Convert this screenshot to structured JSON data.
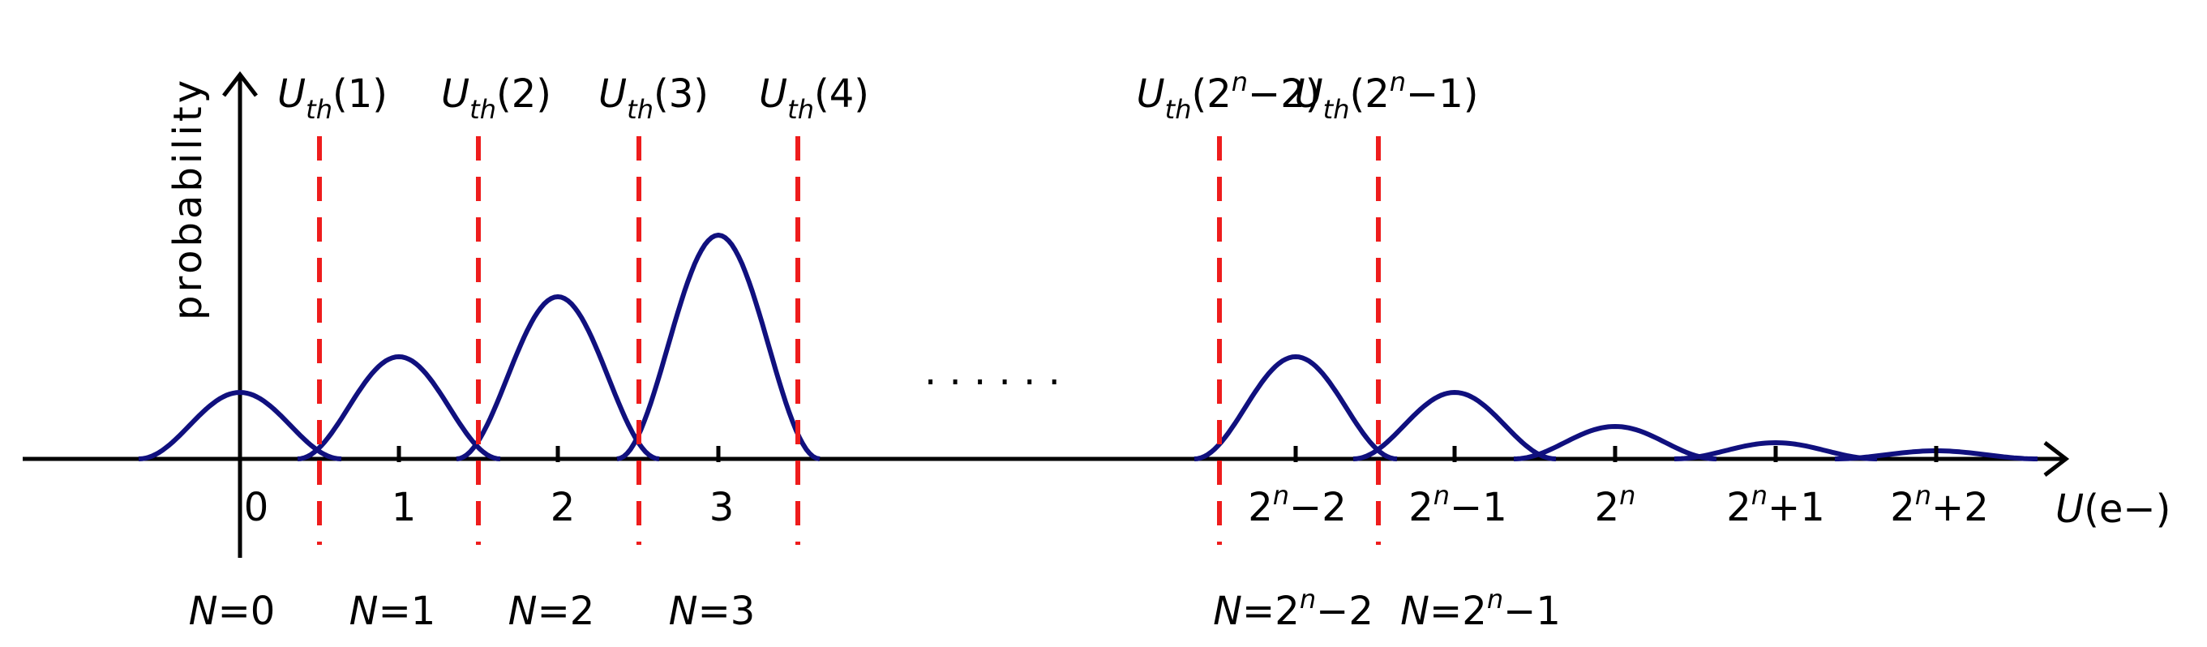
{
  "y_axis_label": "probability",
  "x_axis_label": {
    "var": "U",
    "unit": "(e−)"
  },
  "dots": "· · · · · ·",
  "colors": {
    "curve": "#10107e",
    "threshold": "#ee1c1c",
    "axis": "#000000"
  },
  "peaks": [
    {
      "tick": "0",
      "sup": "",
      "tail": "",
      "state": "0",
      "state_sup": "",
      "state_tail": ""
    },
    {
      "tick": "1",
      "sup": "",
      "tail": "",
      "state": "1",
      "state_sup": "",
      "state_tail": ""
    },
    {
      "tick": "2",
      "sup": "",
      "tail": "",
      "state": "2",
      "state_sup": "",
      "state_tail": ""
    },
    {
      "tick": "3",
      "sup": "",
      "tail": "",
      "state": "3",
      "state_sup": "",
      "state_tail": ""
    },
    {
      "tick": "2",
      "sup": "n",
      "tail": "−2",
      "state": "2",
      "state_sup": "n",
      "state_tail": "−2"
    },
    {
      "tick": "2",
      "sup": "n",
      "tail": "−1",
      "state": "2",
      "state_sup": "n",
      "state_tail": "−1"
    },
    {
      "tick": "2",
      "sup": "n",
      "tail": "",
      "state": "",
      "state_sup": "",
      "state_tail": ""
    },
    {
      "tick": "2",
      "sup": "n",
      "tail": "+1",
      "state": "",
      "state_sup": "",
      "state_tail": ""
    },
    {
      "tick": "2",
      "sup": "n",
      "tail": "+2",
      "state": "",
      "state_sup": "",
      "state_tail": ""
    }
  ],
  "peak_heights": [
    0.41,
    0.63,
    1.0,
    1.38,
    0.63,
    0.41,
    0.2,
    0.1,
    0.05
  ],
  "thresholds": [
    {
      "arg": "(1)",
      "sup": "",
      "tail": ""
    },
    {
      "arg": "(2)",
      "sup": "",
      "tail": ""
    },
    {
      "arg": "(3)",
      "sup": "",
      "tail": ""
    },
    {
      "arg": "(4)",
      "sup": "",
      "tail": ""
    },
    {
      "arg": "(2",
      "sup": "n",
      "tail": "−2)"
    },
    {
      "arg": "(2",
      "sup": "n",
      "tail": "−1)"
    }
  ],
  "threshold_var": "U",
  "threshold_sub": "th",
  "state_var": "N"
}
